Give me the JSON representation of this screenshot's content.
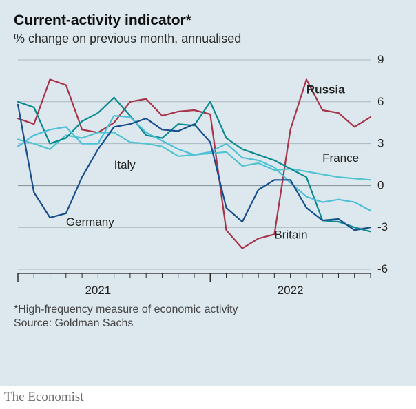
{
  "title": "Current-activity indicator*",
  "subtitle": "% change on previous month, annualised",
  "footnote": "*High-frequency measure of economic activity",
  "source": "Source: Goldman Sachs",
  "brand": "The Economist",
  "title_fontsize": 21,
  "subtitle_fontsize": 18,
  "footnote_fontsize": 16,
  "brand_fontsize": 19,
  "chart": {
    "type": "line",
    "background_color": "#dce8ed",
    "grid_color": "#aab8bf",
    "zero_color": "#8a98a0",
    "axis_color": "#222",
    "ylim": [
      -6,
      9
    ],
    "ytick_step": 3,
    "yticks": [
      -6,
      -3,
      0,
      3,
      6,
      9
    ],
    "x_count": 23,
    "x_year_labels": [
      {
        "at": 5,
        "text": "2021"
      },
      {
        "at": 17,
        "text": "2022"
      }
    ],
    "x_major_ticks": [
      0,
      12
    ],
    "tick_fontsize": 17,
    "label_fontsize": 17,
    "line_width": 2.2,
    "series": [
      {
        "name": "Russia",
        "color": "#a8344a",
        "label": "Russia",
        "label_bold": true,
        "label_xi": 18,
        "label_y": 6.6,
        "y": [
          4.8,
          4.4,
          7.6,
          7.2,
          4.0,
          3.8,
          4.5,
          6.0,
          6.2,
          5.0,
          5.3,
          5.4,
          5.1,
          -3.2,
          -4.5,
          -3.8,
          -3.5,
          4.0,
          7.6,
          5.4,
          5.2,
          4.2,
          4.9
        ]
      },
      {
        "name": "France",
        "color": "#4fc3cf",
        "label": "France",
        "label_bold": false,
        "label_xi": 19,
        "label_y": 1.7,
        "y": [
          3.3,
          3.0,
          2.6,
          3.6,
          3.4,
          3.8,
          3.8,
          3.1,
          3.0,
          2.8,
          2.1,
          2.2,
          2.3,
          2.4,
          1.4,
          1.6,
          1.1,
          1.2,
          1.0,
          0.8,
          0.6,
          0.5,
          0.4
        ]
      },
      {
        "name": "Italy",
        "color": "#0a8a8f",
        "label": "Italy",
        "label_bold": false,
        "label_xi": 6,
        "label_y": 1.2,
        "y": [
          6.0,
          5.6,
          3.0,
          3.4,
          4.6,
          5.2,
          6.3,
          5.0,
          3.6,
          3.4,
          4.4,
          4.3,
          6.0,
          3.4,
          2.6,
          2.2,
          1.8,
          1.2,
          0.6,
          -2.5,
          -2.6,
          -3.0,
          -3.3
        ]
      },
      {
        "name": "Britain",
        "color": "#4dbfd9",
        "label": "Britain",
        "label_bold": false,
        "label_xi": 16,
        "label_y": -3.8,
        "y": [
          2.8,
          3.6,
          4.0,
          4.2,
          3.0,
          3.0,
          5.0,
          4.9,
          3.8,
          3.2,
          2.6,
          2.2,
          2.4,
          3.0,
          2.0,
          1.8,
          1.3,
          0.2,
          -0.8,
          -1.2,
          -1.0,
          -1.2,
          -1.8
        ]
      },
      {
        "name": "Germany",
        "color": "#184e8c",
        "label": "Germany",
        "label_bold": false,
        "label_xi": 3,
        "label_y": -2.9,
        "y": [
          5.8,
          -0.5,
          -2.3,
          -2.0,
          0.6,
          2.6,
          4.2,
          4.4,
          4.8,
          4.0,
          3.9,
          4.4,
          3.1,
          -1.6,
          -2.6,
          -0.3,
          0.4,
          0.4,
          -1.6,
          -2.5,
          -2.4,
          -3.2,
          -3.0
        ]
      }
    ]
  }
}
